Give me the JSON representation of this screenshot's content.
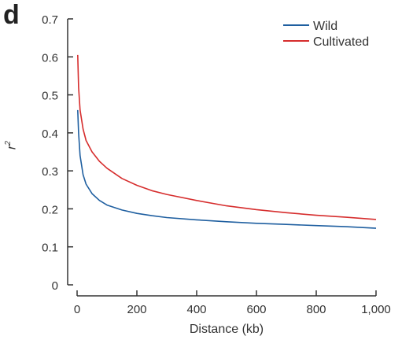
{
  "panel_label": "d",
  "chart_data": {
    "type": "line",
    "xlabel": "Distance (kb)",
    "ylabel": "r",
    "ylabel_superscript": "2",
    "xlim": [
      0,
      1000
    ],
    "ylim": [
      0,
      0.7
    ],
    "x_ticks": [
      0,
      200,
      400,
      600,
      800,
      1000
    ],
    "x_tick_labels": [
      "0",
      "200",
      "400",
      "600",
      "800",
      "1,000"
    ],
    "y_ticks": [
      0,
      0.1,
      0.2,
      0.3,
      0.4,
      0.5,
      0.6,
      0.7
    ],
    "y_tick_labels": [
      "0",
      "0.1",
      "0.2",
      "0.3",
      "0.4",
      "0.5",
      "0.6",
      "0.7"
    ],
    "grid": false,
    "legend_position": "top-right",
    "series": [
      {
        "name": "Wild",
        "color": "#1f5fa0",
        "x": [
          2,
          5,
          10,
          20,
          30,
          50,
          75,
          100,
          150,
          200,
          250,
          300,
          400,
          500,
          600,
          700,
          800,
          900,
          1000
        ],
        "y": [
          0.46,
          0.4,
          0.34,
          0.29,
          0.265,
          0.24,
          0.222,
          0.21,
          0.197,
          0.188,
          0.182,
          0.177,
          0.171,
          0.166,
          0.162,
          0.159,
          0.156,
          0.153,
          0.149
        ]
      },
      {
        "name": "Cultivated",
        "color": "#d62d2d",
        "x": [
          2,
          5,
          10,
          20,
          30,
          50,
          75,
          100,
          150,
          200,
          250,
          300,
          400,
          500,
          600,
          700,
          800,
          900,
          1000
        ],
        "y": [
          0.605,
          0.52,
          0.46,
          0.41,
          0.38,
          0.35,
          0.325,
          0.307,
          0.28,
          0.262,
          0.248,
          0.238,
          0.222,
          0.208,
          0.198,
          0.19,
          0.183,
          0.178,
          0.172
        ]
      }
    ]
  }
}
